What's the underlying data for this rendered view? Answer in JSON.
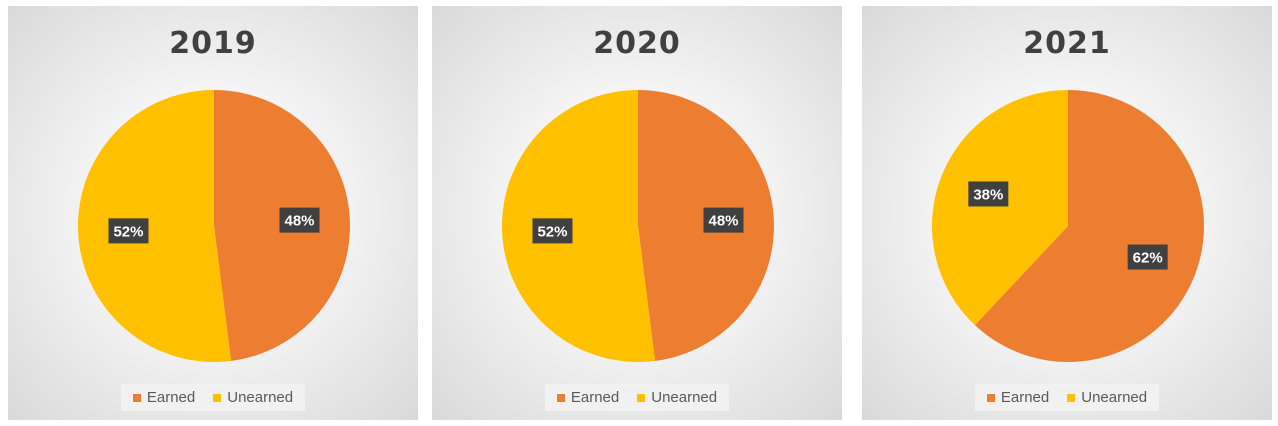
{
  "colors": {
    "earned": "#ED7D31",
    "unearned": "#FFC000",
    "label_bg": "#404040",
    "label_text": "#ffffff"
  },
  "chart_data": [
    {
      "type": "pie",
      "title": "2019",
      "slices": [
        {
          "name": "Earned",
          "value": 48,
          "label": "48%"
        },
        {
          "name": "Unearned",
          "value": 52,
          "label": "52%"
        }
      ],
      "legend": {
        "position": "bottom",
        "entries": [
          "Earned",
          "Unearned"
        ]
      }
    },
    {
      "type": "pie",
      "title": "2020",
      "slices": [
        {
          "name": "Earned",
          "value": 48,
          "label": "48%"
        },
        {
          "name": "Unearned",
          "value": 52,
          "label": "52%"
        }
      ],
      "legend": {
        "position": "bottom",
        "entries": [
          "Earned",
          "Unearned"
        ]
      }
    },
    {
      "type": "pie",
      "title": "2021",
      "slices": [
        {
          "name": "Earned",
          "value": 62,
          "label": "62%"
        },
        {
          "name": "Unearned",
          "value": 38,
          "label": "38%"
        }
      ],
      "legend": {
        "position": "bottom",
        "entries": [
          "Earned",
          "Unearned"
        ]
      }
    }
  ]
}
